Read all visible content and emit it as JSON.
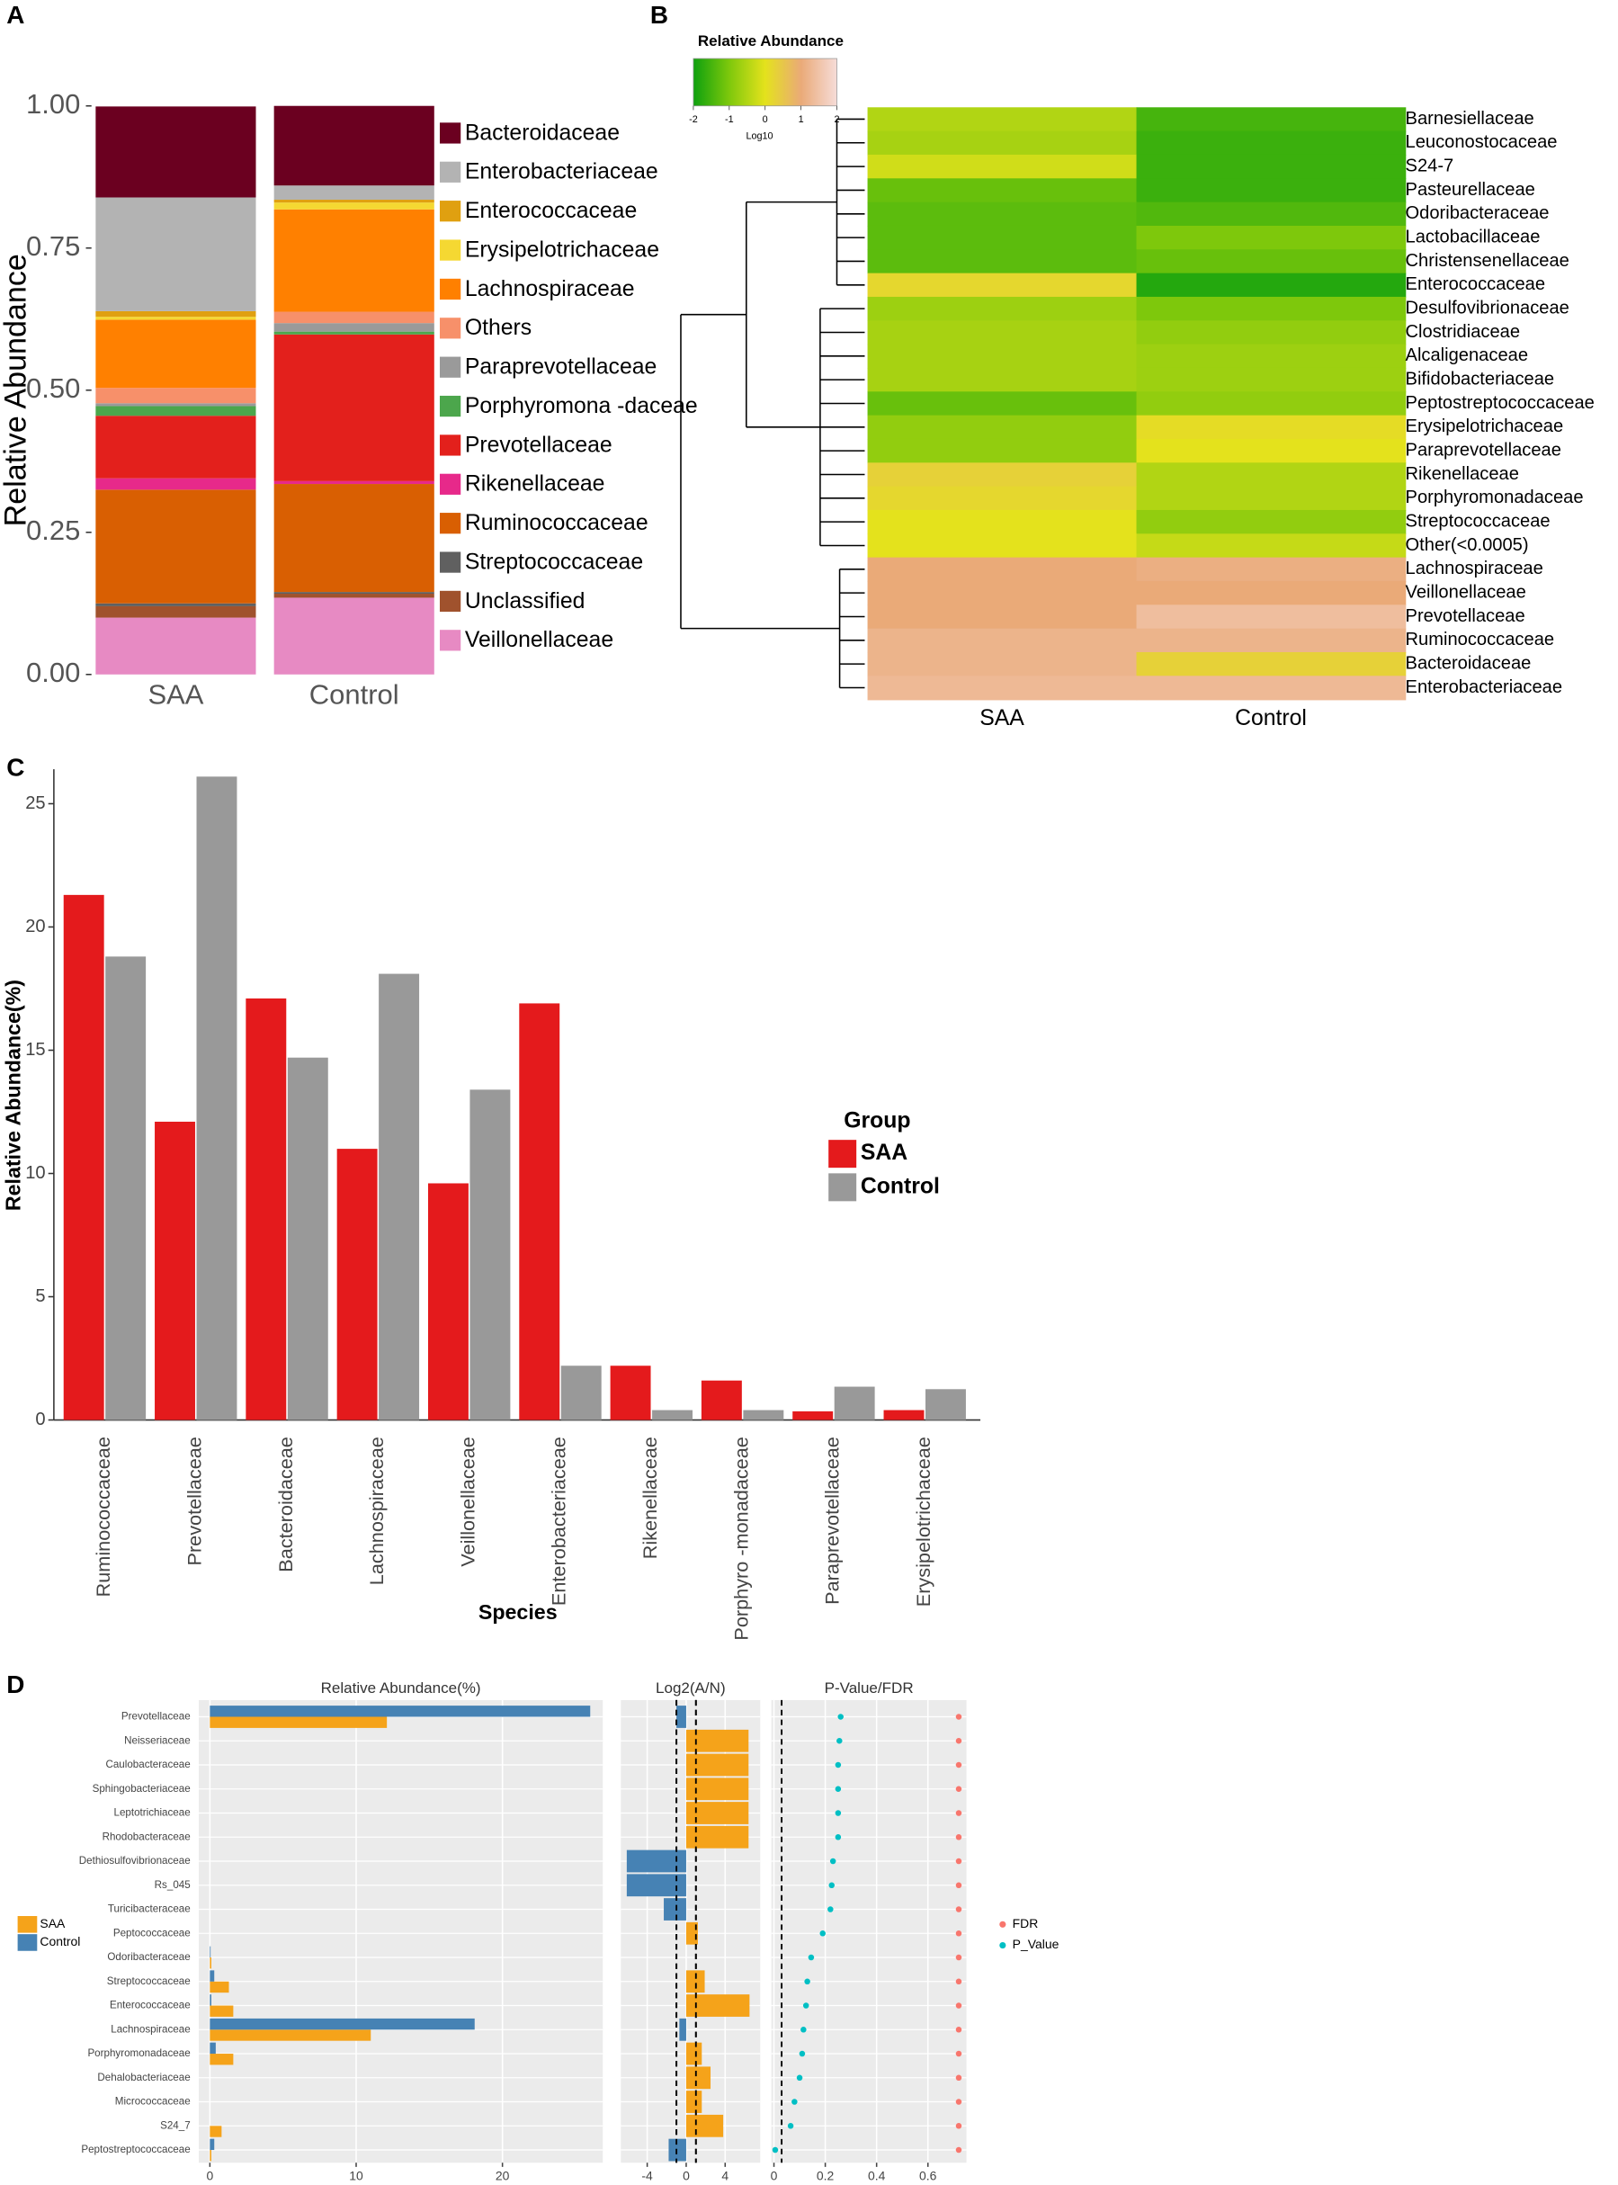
{
  "chart_data": [
    {
      "type": "stacked_bar",
      "panel_label": "A",
      "ylabel": "Relative Abundance",
      "categories": [
        "SAA",
        "Control"
      ],
      "ylim": [
        0,
        1
      ],
      "yticks": [
        {
          "value": 0,
          "label": "0.00"
        },
        {
          "value": 0.25,
          "label": "0.25"
        },
        {
          "value": 0.5,
          "label": "0.50"
        },
        {
          "value": 0.75,
          "label": "0.75"
        },
        {
          "value": 1,
          "label": "1.00"
        }
      ],
      "series": [
        {
          "name": "Bacteroidaceae",
          "color": "#6b0020",
          "values": [
            0.16,
            0.14
          ]
        },
        {
          "name": "Enterobacteriaceae",
          "color": "#b3b3b3",
          "values": [
            0.2,
            0.025
          ]
        },
        {
          "name": "Enterococcaceae",
          "color": "#e0a010",
          "values": [
            0.01,
            0.005
          ]
        },
        {
          "name": "Erysipelotrichaceae",
          "color": "#f5d832",
          "values": [
            0.005,
            0.012
          ]
        },
        {
          "name": "Lachnospiraceae",
          "color": "#ff8000",
          "values": [
            0.12,
            0.18
          ]
        },
        {
          "name": "Others",
          "color": "#f7906a",
          "values": [
            0.027,
            0.02
          ]
        },
        {
          "name": "Paraprevotellaceae",
          "color": "#9a9a9a",
          "values": [
            0.005,
            0.015
          ]
        },
        {
          "name": "Porphyromona -daceae",
          "color": "#4ca64c",
          "values": [
            0.017,
            0.005
          ]
        },
        {
          "name": "Prevotellaceae",
          "color": "#e3201c",
          "values": [
            0.11,
            0.258
          ]
        },
        {
          "name": "Rikenellaceae",
          "color": "#e7298a",
          "values": [
            0.02,
            0.005
          ]
        },
        {
          "name": "Ruminococcaceae",
          "color": "#d95f02",
          "values": [
            0.2,
            0.19
          ]
        },
        {
          "name": "Streptococcaceae",
          "color": "#606060",
          "values": [
            0.005,
            0.003
          ]
        },
        {
          "name": "Unclassified",
          "color": "#a0522d",
          "values": [
            0.02,
            0.007
          ]
        },
        {
          "name": "Veillonellaceae",
          "color": "#e78ac3",
          "values": [
            0.1,
            0.135
          ]
        }
      ]
    },
    {
      "type": "heatmap",
      "panel_label": "B",
      "colorbar_title": "Relative Abundance",
      "colorbar_label": "Log10",
      "clim": [
        -2,
        2
      ],
      "colorbar_ticks": [
        -2,
        -1,
        0,
        1,
        2
      ],
      "colorbar_colors": [
        "#0ea00e",
        "#7ec80c",
        "#e4e21c",
        "#eaaa78",
        "#f6dcd8"
      ],
      "columns": [
        "SAA",
        "Control"
      ],
      "rows": [
        "Barnesiellaceae",
        "Leuconostocaceae",
        "S24-7",
        "Pasteurellaceae",
        "Odoribacteraceae",
        "Lactobacillaceae",
        "Christensenellaceae",
        "Enterococcaceae",
        "Desulfovibrionaceae",
        "Clostridiaceae",
        "Alcaligenaceae",
        "Bifidobacteriaceae",
        "Peptostreptococcaceae",
        "Erysipelotrichaceae",
        "Paraprevotellaceae",
        "Rikenellaceae",
        "Porphyromonadaceae",
        "Streptococcaceae",
        "Other(<0.0005)",
        "Lachnospiraceae",
        "Veillonellaceae",
        "Prevotellaceae",
        "Ruminococcaceae",
        "Bacteroidaceae",
        "Enterobacteriaceae"
      ],
      "values": [
        [
          -0.5,
          -1.5
        ],
        [
          -0.6,
          -1.6
        ],
        [
          -0.2,
          -1.6
        ],
        [
          -1.2,
          -1.6
        ],
        [
          -1.3,
          -1.4
        ],
        [
          -1.3,
          -1.0
        ],
        [
          -1.3,
          -1.2
        ],
        [
          0.2,
          -1.8
        ],
        [
          -0.7,
          -1.0
        ],
        [
          -0.6,
          -0.8
        ],
        [
          -0.6,
          -0.7
        ],
        [
          -0.6,
          -0.7
        ],
        [
          -1.2,
          -0.8
        ],
        [
          -0.8,
          0.1
        ],
        [
          -0.8,
          0.0
        ],
        [
          0.3,
          -0.5
        ],
        [
          0.2,
          -0.5
        ],
        [
          0.0,
          -0.8
        ],
        [
          0.0,
          -0.3
        ],
        [
          1.0,
          1.1
        ],
        [
          1.0,
          1.0
        ],
        [
          1.0,
          1.4
        ],
        [
          1.2,
          1.2
        ],
        [
          1.2,
          0.3
        ],
        [
          1.3,
          1.3
        ]
      ]
    },
    {
      "type": "bar",
      "panel_label": "C",
      "ylabel": "Relative Abundance(%)",
      "xlabel": "Species",
      "legend_title": "Group",
      "categories": [
        "Ruminococcaceae",
        "Prevotellaceae",
        "Bacteroidaceae",
        "Lachnospiraceae",
        "Veillonellaceae",
        "Enterobacteriaceae",
        "Rikenellaceae",
        "Porphyro -monadaceae",
        "Paraprevotellaceae",
        "Erysipelotrichaceae"
      ],
      "ylim": [
        0,
        26.4
      ],
      "yticks": [
        0,
        5,
        10,
        15,
        20,
        25
      ],
      "series": [
        {
          "name": "SAA",
          "color": "#e41a1c",
          "values": [
            21.3,
            12.1,
            17.1,
            11.0,
            9.6,
            16.9,
            2.2,
            1.6,
            0.35,
            0.4
          ]
        },
        {
          "name": "Control",
          "color": "#999999",
          "values": [
            18.8,
            26.1,
            14.7,
            18.1,
            13.4,
            2.2,
            0.4,
            0.4,
            1.35,
            1.25
          ]
        }
      ]
    },
    {
      "type": "hbar",
      "panel_label": "D",
      "title": "Relative Abundance(%)",
      "categories": [
        "Prevotellaceae",
        "Neisseriaceae",
        "Caulobacteraceae",
        "Sphingobacteriaceae",
        "Leptotrichiaceae",
        "Rhodobacteraceae",
        "Dethiosulfovibrionaceae",
        "Rs_045",
        "Turicibacteraceae",
        "Peptococcaceae",
        "Odoribacteraceae",
        "Streptococcaceae",
        "Enterococcaceae",
        "Lachnospiraceae",
        "Porphyromonadaceae",
        "Dehalobacteriaceae",
        "Micrococcaceae",
        "S24_7",
        "Peptostreptococcaceae"
      ],
      "xlim": [
        -0.76,
        26.86
      ],
      "xticks": [
        0,
        10,
        20
      ],
      "series": [
        {
          "name": "SAA",
          "color": "#f5a31a",
          "values": [
            12.1,
            0,
            0,
            0,
            0,
            0,
            0,
            0,
            0,
            0,
            0.1,
            1.3,
            1.6,
            11.0,
            1.6,
            0,
            0,
            0.8,
            0.1
          ]
        },
        {
          "name": "Control",
          "color": "#4682b4",
          "values": [
            26.0,
            0,
            0,
            0,
            0,
            0,
            0,
            0,
            0,
            0,
            0.05,
            0.3,
            0.1,
            18.1,
            0.4,
            0,
            0,
            0,
            0.3
          ]
        }
      ]
    },
    {
      "type": "diverging_bar",
      "title": "Log2(A/N)",
      "values": [
        -1.0,
        6.4,
        6.4,
        6.4,
        6.4,
        6.4,
        -6.1,
        -6.1,
        -2.3,
        1.2,
        0,
        1.9,
        6.5,
        -0.7,
        1.6,
        2.5,
        1.6,
        3.8,
        -1.8
      ],
      "xlim": [
        -6.7,
        7.6
      ],
      "xticks": [
        -4,
        0,
        4
      ],
      "reference_lines": [
        -1,
        1
      ],
      "positive_color": "#f5a31a",
      "negative_color": "#4682b4"
    },
    {
      "type": "dot",
      "title": "P-Value/FDR",
      "xlim": [
        -0.01,
        0.75
      ],
      "xticks": [
        0,
        0.2,
        0.4,
        0.6
      ],
      "reference_lines": [
        0.03
      ],
      "series": [
        {
          "name": "FDR",
          "color": "#f8766d",
          "values": [
            0.72,
            0.72,
            0.72,
            0.72,
            0.72,
            0.72,
            0.72,
            0.72,
            0.72,
            0.72,
            0.72,
            0.72,
            0.72,
            0.72,
            0.72,
            0.72,
            0.72,
            0.72,
            0.72
          ]
        },
        {
          "name": "P_Value",
          "color": "#00bfc4",
          "values": [
            0.26,
            0.255,
            0.25,
            0.25,
            0.25,
            0.25,
            0.23,
            0.225,
            0.22,
            0.19,
            0.145,
            0.13,
            0.125,
            0.115,
            0.11,
            0.1,
            0.08,
            0.065,
            0.005
          ]
        }
      ]
    }
  ]
}
